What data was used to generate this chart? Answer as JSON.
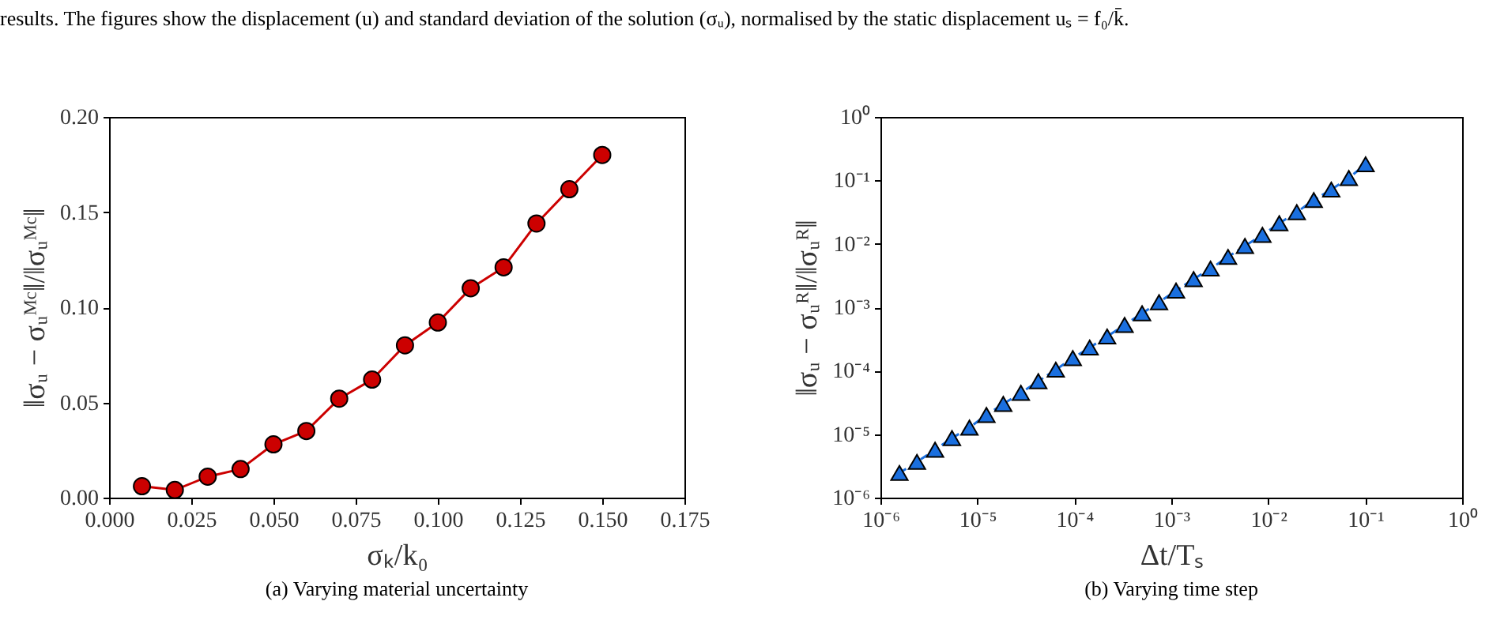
{
  "chart_data": [
    {
      "type": "line",
      "title": "(a) Varying material uncertainty",
      "annotations": [
        "results. The figures show the displacement (u) and standard deviation of the solution (σᵤ), normalised by the static displacement uₛ = f₀/k̄."
      ],
      "xlabel": "σₖ/k₀",
      "ylabel": "‖σᵤ − σᵤᴹᶜ‖/‖σᵤᴹᶜ‖",
      "x": [
        0.01,
        0.02,
        0.03,
        0.04,
        0.05,
        0.06,
        0.07,
        0.08,
        0.09,
        0.1,
        0.11,
        0.12,
        0.13,
        0.14,
        0.15
      ],
      "series": [
        {
          "color": "#cc0000",
          "values": [
            0.006,
            0.004,
            0.011,
            0.015,
            0.028,
            0.035,
            0.052,
            0.062,
            0.08,
            0.092,
            0.11,
            0.121,
            0.144,
            0.162,
            0.18
          ]
        }
      ],
      "xlim": [
        0,
        0.175
      ],
      "xticks": [
        {
          "value": 0,
          "label": "0.000"
        },
        0.025,
        {
          "value": 0.05,
          "label": "0.050"
        },
        0.075,
        {
          "value": 0.1,
          "label": "0.100"
        },
        0.125,
        {
          "value": 0.15,
          "label": "0.150"
        },
        0.175
      ],
      "ylim": [
        0,
        0.2
      ],
      "yticks": [
        {
          "value": 0,
          "label": "0.00"
        },
        0.05,
        {
          "value": 0.1,
          "label": "0.10"
        },
        0.15,
        {
          "value": 0.2,
          "label": "0.20"
        }
      ],
      "marker": "circle",
      "line_style": "solid",
      "grid": false
    },
    {
      "type": "line",
      "title": "(b) Varying time step",
      "xlabel": "Δt/Tₛ",
      "ylabel": "‖σᵤ − σᵤᴿ‖/‖σᵤᴿ‖",
      "log": "xy",
      "x": [
        1.57e-06,
        2.38e-06,
        3.66e-06,
        5.47e-06,
        8.28e-06,
        1.24e-05,
        1.85e-05,
        2.81e-05,
        4.25e-05,
        6.44e-05,
        9.64e-05,
        0.000144,
        0.000218,
        0.00033,
        0.0005,
        0.000748,
        0.00112,
        0.0017,
        0.00254,
        0.00385,
        0.00575,
        0.00871,
        0.013,
        0.0197,
        0.0295,
        0.0447,
        0.0678,
        0.101
      ],
      "series": [
        {
          "color": "#1a6fdf",
          "values": [
            2.45e-06,
            3.66e-06,
            5.69e-06,
            8.67e-06,
            1.27e-05,
            2.01e-05,
            3e-05,
            4.48e-05,
            6.82e-05,
            0.000104,
            0.000158,
            0.000232,
            0.000346,
            0.000527,
            0.000803,
            0.0012,
            0.00183,
            0.00278,
            0.00407,
            0.00621,
            0.00927,
            0.0138,
            0.0211,
            0.0315,
            0.0489,
            0.0716,
            0.109,
            0.179
          ]
        }
      ],
      "xlim": [
        1e-06,
        1
      ],
      "xticks": [
        {
          "value": 1e-06,
          "label": "10⁻⁶"
        },
        {
          "value": 1e-05,
          "label": "10⁻⁵"
        },
        {
          "value": 0.0001,
          "label": "10⁻⁴"
        },
        {
          "value": 0.001,
          "label": "10⁻³"
        },
        {
          "value": 0.01,
          "label": "10⁻²"
        },
        {
          "value": 0.1,
          "label": "10⁻¹"
        },
        {
          "value": 1,
          "label": "10⁰"
        }
      ],
      "ylim": [
        1e-06,
        1
      ],
      "yticks": [
        {
          "value": 1e-06,
          "label": "10⁻⁶"
        },
        {
          "value": 1e-05,
          "label": "10⁻⁵"
        },
        {
          "value": 0.0001,
          "label": "10⁻⁴"
        },
        {
          "value": 0.001,
          "label": "10⁻³"
        },
        {
          "value": 0.01,
          "label": "10⁻²"
        },
        {
          "value": 0.1,
          "label": "10⁻¹"
        },
        {
          "value": 1,
          "label": "10⁰"
        }
      ],
      "marker": "triangle",
      "line_style": "dashed",
      "grid": false
    }
  ]
}
